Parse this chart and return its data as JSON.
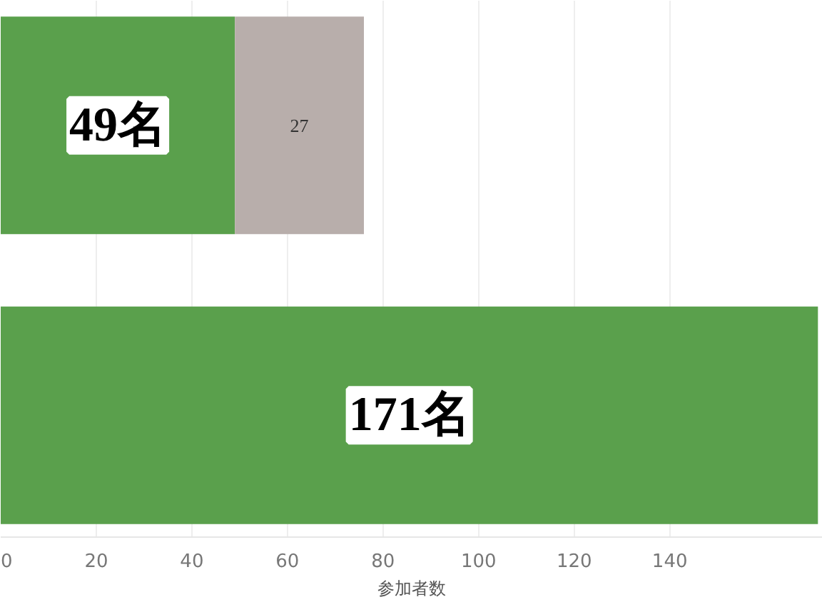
{
  "chart_data": {
    "type": "bar",
    "orientation": "horizontal",
    "stacked": true,
    "categories": [
      null,
      null
    ],
    "series": [
      {
        "color": "#5aa04c",
        "values": [
          49,
          171
        ],
        "value_labels": [
          "49名",
          "171名"
        ]
      },
      {
        "color": "#b8aeab",
        "values": [
          27,
          null
        ],
        "value_labels": [
          "27",
          null
        ]
      }
    ],
    "xlabel": "参加者数",
    "xlim": [
      0,
      172
    ],
    "xticks": [
      0,
      20,
      40,
      60,
      80,
      100,
      120,
      140
    ],
    "grid": "x",
    "tick_labels": "x"
  }
}
